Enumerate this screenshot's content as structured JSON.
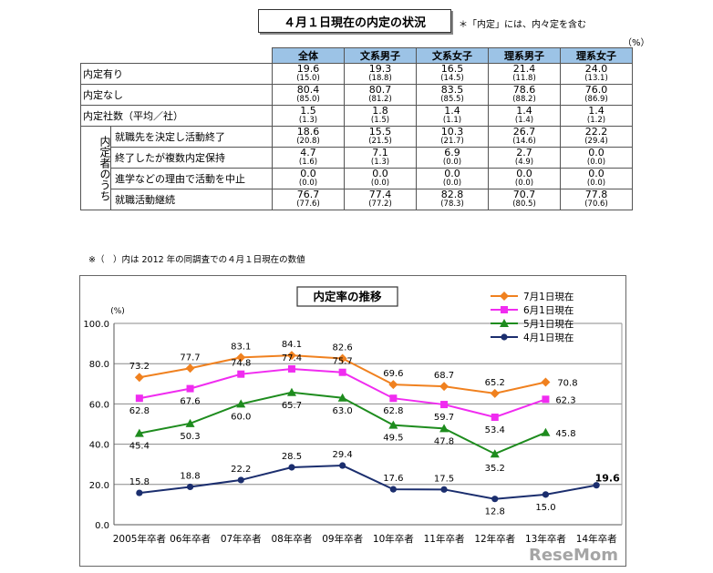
{
  "table": {
    "title": "４月１日現在の内定の状況",
    "note": "＊「内定」には、内々定を含む",
    "unit": "（%）",
    "columns": [
      "全体",
      "文系男子",
      "文系女子",
      "理系男子",
      "理系女子"
    ],
    "rows": [
      {
        "label": "内定有り",
        "values": [
          "19.6",
          "19.3",
          "16.5",
          "21.4",
          "24.0"
        ],
        "prev": [
          "(15.0)",
          "(18.8)",
          "(14.5)",
          "(11.8)",
          "(13.1)"
        ]
      },
      {
        "label": "内定なし",
        "values": [
          "80.4",
          "80.7",
          "83.5",
          "78.6",
          "76.0"
        ],
        "prev": [
          "(85.0)",
          "(81.2)",
          "(85.5)",
          "(88.2)",
          "(86.9)"
        ]
      },
      {
        "label": "内定社数（平均／社）",
        "values": [
          "1.5",
          "1.8",
          "1.4",
          "1.4",
          "1.4"
        ],
        "prev": [
          "(1.3)",
          "(1.5)",
          "(1.1)",
          "(1.4)",
          "(1.2)"
        ]
      }
    ],
    "group_label": "内定者のうち",
    "sub_rows": [
      {
        "label": "就職先を決定し活動終了",
        "values": [
          "18.6",
          "15.5",
          "10.3",
          "26.7",
          "22.2"
        ],
        "prev": [
          "(20.8)",
          "(21.5)",
          "(21.7)",
          "(14.6)",
          "(29.4)"
        ]
      },
      {
        "label": "終了したが複数内定保持",
        "values": [
          "4.7",
          "7.1",
          "6.9",
          "2.7",
          "0.0"
        ],
        "prev": [
          "(1.6)",
          "(1.3)",
          "(0.0)",
          "(4.9)",
          "(0.0)"
        ]
      },
      {
        "label": "進学などの理由で活動を中止",
        "values": [
          "0.0",
          "0.0",
          "0.0",
          "0.0",
          "0.0"
        ],
        "prev": [
          "(0.0)",
          "(0.0)",
          "(0.0)",
          "(0.0)",
          "(0.0)"
        ]
      },
      {
        "label": "就職活動継続",
        "values": [
          "76.7",
          "77.4",
          "82.8",
          "70.7",
          "77.8"
        ],
        "prev": [
          "(77.6)",
          "(77.2)",
          "(78.3)",
          "(80.5)",
          "(70.6)"
        ]
      }
    ],
    "footnote": "※（　）内は 2012 年の同調査での４月１日現在の数値"
  },
  "chart_data": {
    "type": "line",
    "title": "内定率の推移",
    "ylabel": "(%)",
    "ylim": [
      0,
      100
    ],
    "yticks": [
      "0.0",
      "20.0",
      "40.0",
      "60.0",
      "80.0",
      "100.0"
    ],
    "categories": [
      "2005年卒者",
      "06年卒者",
      "07年卒者",
      "08年卒者",
      "09年卒者",
      "10年卒者",
      "11年卒者",
      "12年卒者",
      "13年卒者",
      "14年卒者"
    ],
    "series": [
      {
        "name": "7月1日現在",
        "color": "#f0811f",
        "marker": "diamond",
        "values": [
          73.2,
          77.7,
          83.1,
          84.1,
          82.6,
          69.6,
          68.7,
          65.2,
          70.8,
          null
        ]
      },
      {
        "name": "6月1日現在",
        "color": "#f02cf0",
        "marker": "square",
        "values": [
          62.8,
          67.6,
          74.8,
          77.4,
          75.7,
          62.8,
          59.7,
          53.4,
          62.3,
          null
        ]
      },
      {
        "name": "5月1日現在",
        "color": "#1e8c1e",
        "marker": "triangle",
        "values": [
          45.4,
          50.3,
          60.0,
          65.7,
          63.0,
          49.5,
          47.8,
          35.2,
          45.8,
          null
        ]
      },
      {
        "name": "4月1日現在",
        "color": "#1b2e6e",
        "marker": "circle",
        "values": [
          15.8,
          18.8,
          22.2,
          28.5,
          29.4,
          17.6,
          17.5,
          12.8,
          15.0,
          19.6
        ]
      }
    ],
    "legend_position": "top-right"
  },
  "watermark": "ReseMom"
}
